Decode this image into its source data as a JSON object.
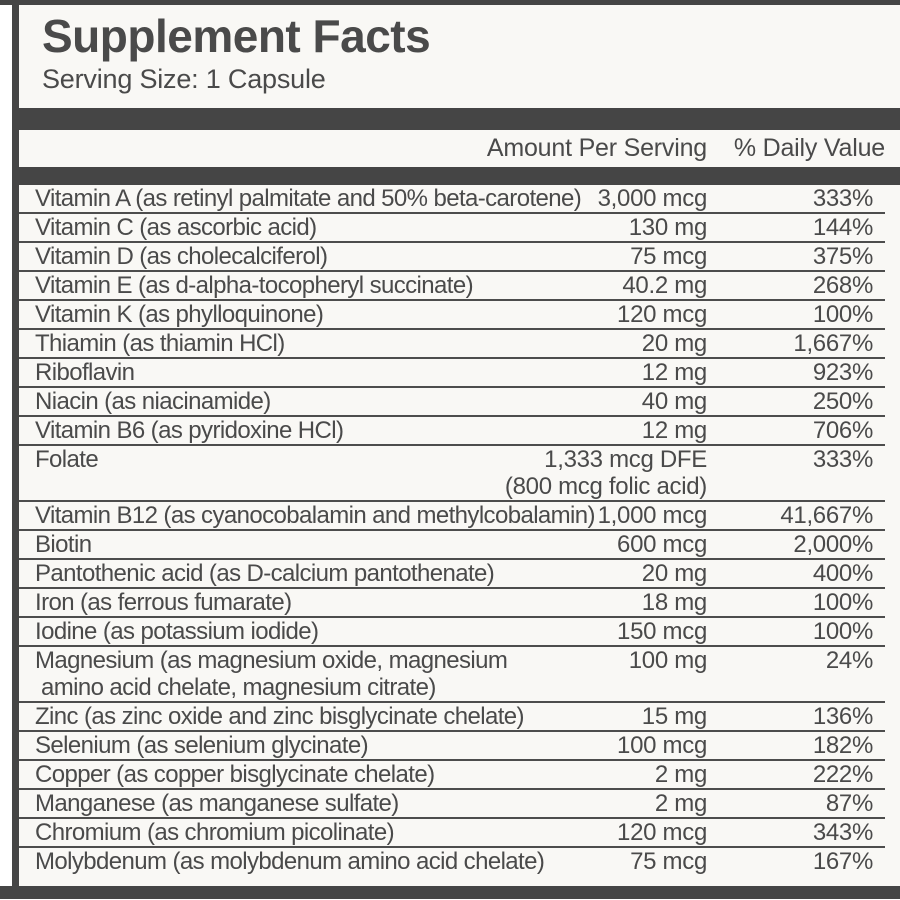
{
  "title": "Supplement Facts",
  "serving_size": "Serving Size: 1 Capsule",
  "columns": {
    "amount": "Amount Per Serving",
    "daily_value": "% Daily Value"
  },
  "colors": {
    "dark_bar": "#454545",
    "text": "#4a4a4a",
    "label_background": "#f9f8f5",
    "row_divider": "#4d4d4d"
  },
  "table": {
    "rows": [
      {
        "name": "Vitamin A (as retinyl palmitate and 50% beta-carotene)",
        "amount": "3,000 mcg",
        "dv": "333%"
      },
      {
        "name": "Vitamin C (as ascorbic acid)",
        "amount": "130 mg",
        "dv": "144%"
      },
      {
        "name": "Vitamin D (as cholecalciferol)",
        "amount": "75 mcg",
        "dv": "375%"
      },
      {
        "name": "Vitamin E (as d-alpha-tocopheryl succinate)",
        "amount": "40.2 mg",
        "dv": "268%"
      },
      {
        "name": "Vitamin K (as phylloquinone)",
        "amount": "120 mcg",
        "dv": "100%"
      },
      {
        "name": "Thiamin (as thiamin HCl)",
        "amount": "20 mg",
        "dv": "1,667%"
      },
      {
        "name": "Riboflavin",
        "amount": "12 mg",
        "dv": "923%"
      },
      {
        "name": "Niacin (as niacinamide)",
        "amount": "40 mg",
        "dv": "250%"
      },
      {
        "name": "Vitamin B6 (as pyridoxine HCl)",
        "amount": "12 mg",
        "dv": "706%"
      },
      {
        "name": "Folate",
        "amount": "1,333 mcg DFE",
        "amount2": "(800 mcg folic acid)",
        "dv": "333%"
      },
      {
        "name": "Vitamin B12 (as cyanocobalamin and methylcobalamin)",
        "amount": "1,000 mcg",
        "dv": "41,667%"
      },
      {
        "name": "Biotin",
        "amount": "600 mcg",
        "dv": "2,000%"
      },
      {
        "name": "Pantothenic acid (as D-calcium pantothenate)",
        "amount": "20 mg",
        "dv": "400%"
      },
      {
        "name": "Iron (as ferrous fumarate)",
        "amount": "18 mg",
        "dv": "100%"
      },
      {
        "name": "Iodine (as potassium iodide)",
        "amount": "150 mcg",
        "dv": "100%"
      },
      {
        "name": "Magnesium (as magnesium oxide, magnesium",
        "name2": "amino acid chelate, magnesium citrate)",
        "amount": "100 mg",
        "dv": "24%"
      },
      {
        "name": "Zinc (as zinc oxide and zinc bisglycinate chelate)",
        "amount": "15 mg",
        "dv": "136%"
      },
      {
        "name": "Selenium (as selenium glycinate)",
        "amount": "100 mcg",
        "dv": "182%"
      },
      {
        "name": "Copper (as copper bisglycinate chelate)",
        "amount": "2 mg",
        "dv": "222%"
      },
      {
        "name": "Manganese (as manganese sulfate)",
        "amount": "2 mg",
        "dv": "87%"
      },
      {
        "name": "Chromium (as chromium picolinate)",
        "amount": "120 mcg",
        "dv": "343%"
      },
      {
        "name": "Molybdenum (as molybdenum amino acid chelate)",
        "amount": "75 mcg",
        "dv": "167%"
      }
    ]
  }
}
